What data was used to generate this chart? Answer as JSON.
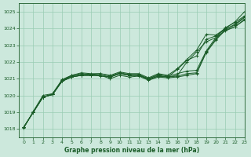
{
  "bg_color": "#cce8dc",
  "grid_color": "#99ccb3",
  "line_color": "#1a5c28",
  "xlabel": "Graphe pression niveau de la mer (hPa)",
  "xlabel_color": "#1a5c28",
  "ylim": [
    1017.5,
    1025.5
  ],
  "xlim": [
    -0.5,
    23
  ],
  "yticks": [
    1018,
    1019,
    1020,
    1021,
    1022,
    1023,
    1024,
    1025
  ],
  "xticks": [
    0,
    1,
    2,
    3,
    4,
    5,
    6,
    7,
    8,
    9,
    10,
    11,
    12,
    13,
    14,
    15,
    16,
    17,
    18,
    19,
    20,
    21,
    22,
    23
  ],
  "series": [
    [
      1018.1,
      1019.0,
      1019.9,
      1020.05,
      1020.85,
      1021.1,
      1021.2,
      1021.2,
      1021.2,
      1021.1,
      1021.3,
      1021.2,
      1021.2,
      1020.95,
      1021.15,
      1021.1,
      1021.15,
      1021.3,
      1021.35,
      1022.6,
      1023.35,
      1023.95,
      1024.25,
      1024.7
    ],
    [
      1018.1,
      1019.0,
      1019.9,
      1020.05,
      1020.85,
      1021.1,
      1021.2,
      1021.2,
      1021.2,
      1021.1,
      1021.3,
      1021.2,
      1021.2,
      1020.95,
      1021.15,
      1021.1,
      1021.55,
      1022.1,
      1022.35,
      1023.35,
      1023.55,
      1023.95,
      1024.2,
      1024.65
    ],
    [
      1018.1,
      1019.0,
      1019.9,
      1020.05,
      1020.85,
      1021.1,
      1021.2,
      1021.2,
      1021.2,
      1021.0,
      1021.2,
      1021.1,
      1021.15,
      1020.9,
      1021.1,
      1021.05,
      1021.1,
      1021.2,
      1021.3,
      1022.55,
      1023.3,
      1023.9,
      1024.1,
      1024.55
    ],
    [
      1018.1,
      1019.0,
      1019.9,
      1020.05,
      1020.9,
      1021.15,
      1021.25,
      1021.25,
      1021.15,
      1021.1,
      1021.3,
      1021.2,
      1021.2,
      1021.0,
      1021.2,
      1021.1,
      1021.2,
      1022.0,
      1022.6,
      1023.2,
      1023.45,
      1023.85,
      1024.1,
      1024.5
    ],
    [
      1018.1,
      1019.0,
      1019.9,
      1020.1,
      1020.9,
      1021.2,
      1021.3,
      1021.25,
      1021.3,
      1021.15,
      1021.35,
      1021.25,
      1021.25,
      1021.0,
      1021.25,
      1021.15,
      1021.3,
      1021.45,
      1021.5,
      1022.65,
      1023.45,
      1024.05,
      1024.35,
      1024.75
    ]
  ],
  "series_top": [
    1018.05,
    1019.05,
    1020.0,
    1020.1,
    1020.95,
    1021.2,
    1021.35,
    1021.3,
    1021.3,
    1021.2,
    1021.4,
    1021.3,
    1021.3,
    1021.05,
    1021.3,
    1021.2,
    1021.6,
    1022.15,
    1022.7,
    1023.65,
    1023.6,
    1024.0,
    1024.4,
    1025.0
  ]
}
